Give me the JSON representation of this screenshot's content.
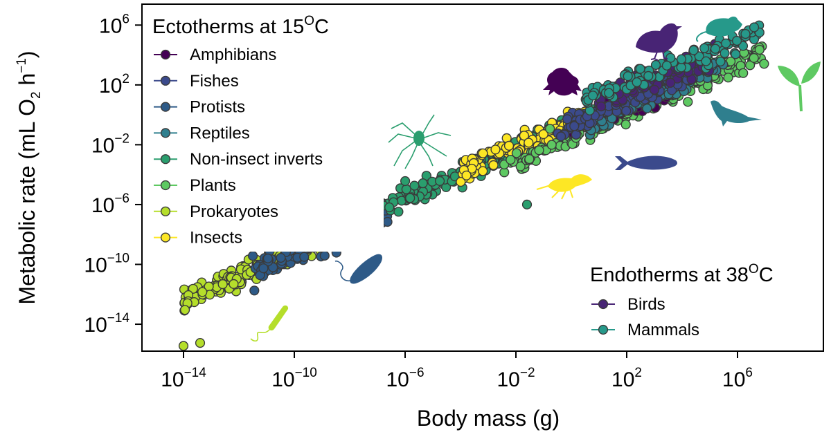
{
  "chart_data": {
    "type": "scatter",
    "scale": "log10",
    "xlabel": "Body mass (g)",
    "ylabel": "Metabolic rate (mL O2 h−1)",
    "xlim_log10": [
      -15.5,
      9.1
    ],
    "ylim_log10": [
      -15.8,
      7.4
    ],
    "x_ticks_log10": [
      -14,
      -10,
      -6,
      -2,
      2,
      6
    ],
    "y_ticks_log10": [
      -14,
      -10,
      -6,
      -2,
      2,
      6
    ],
    "tick_base": "10",
    "ylabel_parts": {
      "main": "Metabolic rate (mL O",
      "sub": "2",
      "mid": " h",
      "sup": "−1",
      "end": ")"
    },
    "legend_ecto": {
      "title": "Ectotherms at 15",
      "title_sup": "O",
      "title_end": "C",
      "placement": "top-left"
    },
    "legend_endo": {
      "title": "Endotherms at 38",
      "title_sup": "O",
      "title_end": "C",
      "placement": "bottom-right"
    },
    "series": [
      {
        "name": "Amphibians",
        "group": "ecto",
        "color": "#440154",
        "x_range": [
          0.0,
          3.5
        ],
        "intercept": -0.9,
        "slope": 0.78,
        "n": 90
      },
      {
        "name": "Fishes",
        "group": "ecto",
        "color": "#3b4a8c",
        "x_range": [
          -0.5,
          4.5
        ],
        "intercept": -0.7,
        "slope": 0.8,
        "n": 120
      },
      {
        "name": "Protists",
        "group": "ecto",
        "color": "#2e5a87",
        "x_range": [
          -11.5,
          -6.5
        ],
        "intercept": -1.5,
        "slope": 0.78,
        "n": 140
      },
      {
        "name": "Reptiles",
        "group": "ecto",
        "color": "#2f7f8e",
        "x_range": [
          0.5,
          5.5
        ],
        "intercept": -1.2,
        "slope": 0.82,
        "n": 110
      },
      {
        "name": "Non-insect inverts",
        "group": "ecto",
        "color": "#2a9e6e",
        "x_range": [
          -7.0,
          2.5
        ],
        "intercept": -0.8,
        "slope": 0.8,
        "n": 230
      },
      {
        "name": "Plants",
        "group": "ecto",
        "color": "#5ec962",
        "x_range": [
          -2.5,
          7.0
        ],
        "intercept": -1.5,
        "slope": 0.82,
        "n": 200
      },
      {
        "name": "Prokaryotes",
        "group": "ecto",
        "color": "#b5de2b",
        "x_range": [
          -14.0,
          -8.5
        ],
        "intercept": -0.6,
        "slope": 0.85,
        "n": 200
      },
      {
        "name": "Insects",
        "group": "ecto",
        "color": "#fde725",
        "x_range": [
          -4.0,
          0.5
        ],
        "intercept": -0.6,
        "slope": 0.8,
        "n": 130
      },
      {
        "name": "Birds",
        "group": "endo",
        "color": "#482475",
        "x_range": [
          0.8,
          5.2
        ],
        "intercept": 0.5,
        "slope": 0.66,
        "n": 80
      },
      {
        "name": "Mammals",
        "group": "endo",
        "color": "#26998a",
        "x_range": [
          0.5,
          6.8
        ],
        "intercept": 0.7,
        "slope": 0.7,
        "n": 110
      }
    ],
    "outliers": [
      {
        "series": "Prokaryotes",
        "x": -14.0,
        "y": -15.45
      },
      {
        "series": "Prokaryotes",
        "x": -13.4,
        "y": -15.25
      },
      {
        "series": "Non-insect inverts",
        "x": -1.6,
        "y": -6.0
      },
      {
        "series": "Mammals",
        "x": 6.6,
        "y": 5.85
      }
    ],
    "silhouettes": [
      {
        "name": "bird-icon",
        "color": "#482475"
      },
      {
        "name": "mouse-icon",
        "color": "#26998a"
      },
      {
        "name": "frog-icon",
        "color": "#440154"
      },
      {
        "name": "seedling-icon",
        "color": "#5ec962"
      },
      {
        "name": "lizard-icon",
        "color": "#2f7f8e"
      },
      {
        "name": "spider-icon",
        "color": "#2a9e6e"
      },
      {
        "name": "fish-icon",
        "color": "#3b4a8c"
      },
      {
        "name": "fly-icon",
        "color": "#fde725"
      },
      {
        "name": "protist-icon",
        "color": "#2e5a87"
      },
      {
        "name": "bacterium-icon",
        "color": "#b5de2b"
      }
    ]
  }
}
